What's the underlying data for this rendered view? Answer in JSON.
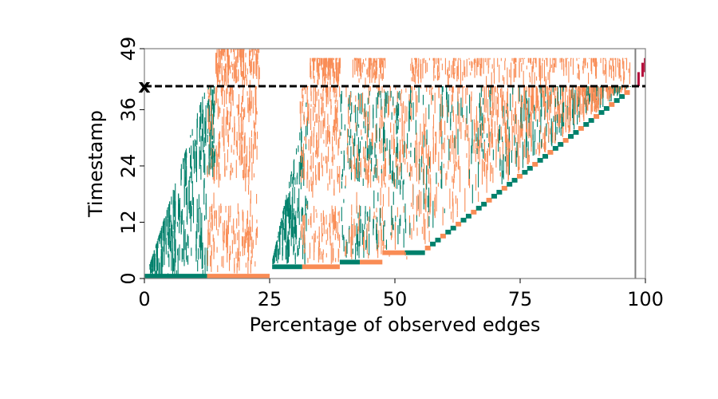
{
  "chart_data": {
    "type": "scatter",
    "title": "",
    "xlabel": "Percentage of observed edges",
    "ylabel": "Timestamp",
    "xlim": [
      0,
      100
    ],
    "ylim": [
      0,
      49
    ],
    "x_ticks": [
      0,
      25,
      50,
      75,
      100
    ],
    "x_tick_labels": [
      "0",
      "25",
      "50",
      "75",
      "100"
    ],
    "y_ticks": [
      0,
      12,
      24,
      36,
      49
    ],
    "y_tick_labels": [
      "0",
      "12",
      "24",
      "36",
      "49"
    ],
    "grid": false,
    "legend": "none",
    "colors": {
      "teal": "#00806b",
      "orange": "#f98c55",
      "crimson": "#b5103c",
      "line": "#000000",
      "frame": "#808080"
    },
    "reference_line": {
      "y": 41,
      "style": "dashed",
      "marker_label": "x"
    },
    "split_line": {
      "x": 98
    },
    "description_series": [
      {
        "name": "",
        "color": "teal",
        "phase_bounds_x": [
          [
            0,
            12.5
          ],
          [
            25.5,
            38
          ],
          [
            38.5,
            45
          ],
          [
            45,
            53
          ],
          [
            53,
            98
          ]
        ]
      },
      {
        "name": "",
        "color": "orange",
        "phase_bounds_x": [
          [
            12.5,
            25
          ],
          [
            31,
            39
          ],
          [
            39,
            53
          ],
          [
            53,
            98
          ]
        ]
      }
    ]
  }
}
